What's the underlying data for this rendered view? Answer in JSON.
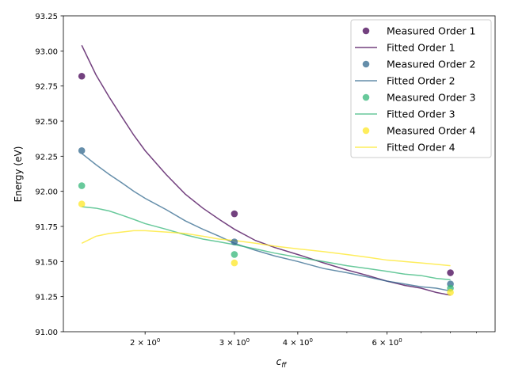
{
  "chart_data": {
    "type": "scatter",
    "xscale": "log",
    "xlabel": "c_ff",
    "xlabel_main": "c",
    "xlabel_sub": "ff",
    "ylabel": "Energy (eV)",
    "xlim": [
      1.38,
      9.8
    ],
    "ylim": [
      91.0,
      93.25
    ],
    "x_ticks_major": [
      {
        "value": 2,
        "base": "2 × 10",
        "exp": "0"
      },
      {
        "value": 3,
        "base": "3 × 10",
        "exp": "0"
      },
      {
        "value": 4,
        "base": "4 × 10",
        "exp": "0"
      },
      {
        "value": 6,
        "base": "6 × 10",
        "exp": "0"
      }
    ],
    "x_ticks_minor": [
      5,
      7,
      8,
      9
    ],
    "y_ticks": [
      {
        "value": 91.0,
        "label": "91.00"
      },
      {
        "value": 91.25,
        "label": "91.25"
      },
      {
        "value": 91.5,
        "label": "91.50"
      },
      {
        "value": 91.75,
        "label": "91.75"
      },
      {
        "value": 92.0,
        "label": "92.00"
      },
      {
        "value": 92.25,
        "label": "92.25"
      },
      {
        "value": 92.5,
        "label": "92.50"
      },
      {
        "value": 92.75,
        "label": "92.75"
      },
      {
        "value": 93.0,
        "label": "93.00"
      },
      {
        "value": 93.25,
        "label": "93.25"
      }
    ],
    "legend_position": "top-right",
    "grid": false,
    "series": [
      {
        "name": "Order 1",
        "measured_label": "Measured Order 1",
        "fitted_label": "Fitted Order 1",
        "color": "#440154",
        "measured": {
          "x": [
            1.5,
            3.0,
            8.0
          ],
          "y": [
            92.82,
            91.84,
            91.42
          ]
        },
        "fitted": {
          "x": [
            1.5,
            1.6,
            1.7,
            1.8,
            1.9,
            2.0,
            2.2,
            2.4,
            2.6,
            2.8,
            3.0,
            3.3,
            3.6,
            4.0,
            4.5,
            5.0,
            5.5,
            6.0,
            6.5,
            7.0,
            7.5,
            8.0
          ],
          "y": [
            93.04,
            92.83,
            92.67,
            92.53,
            92.4,
            92.29,
            92.12,
            91.98,
            91.88,
            91.8,
            91.73,
            91.65,
            91.6,
            91.55,
            91.49,
            91.44,
            91.4,
            91.36,
            91.33,
            91.31,
            91.28,
            91.26
          ]
        }
      },
      {
        "name": "Order 2",
        "measured_label": "Measured Order 2",
        "fitted_label": "Fitted Order 2",
        "color": "#31688e",
        "measured": {
          "x": [
            1.5,
            3.0,
            8.0
          ],
          "y": [
            92.29,
            91.64,
            91.34
          ]
        },
        "fitted": {
          "x": [
            1.5,
            1.6,
            1.7,
            1.8,
            1.9,
            2.0,
            2.2,
            2.4,
            2.6,
            2.8,
            3.0,
            3.3,
            3.6,
            4.0,
            4.5,
            5.0,
            5.5,
            6.0,
            6.5,
            7.0,
            7.5,
            8.0
          ],
          "y": [
            92.27,
            92.19,
            92.12,
            92.06,
            92.0,
            91.95,
            91.87,
            91.79,
            91.73,
            91.68,
            91.63,
            91.58,
            91.54,
            91.5,
            91.45,
            91.42,
            91.39,
            91.36,
            91.34,
            91.32,
            91.31,
            91.29
          ]
        }
      },
      {
        "name": "Order 3",
        "measured_label": "Measured Order 3",
        "fitted_label": "Fitted Order 3",
        "color": "#35b779",
        "measured": {
          "x": [
            1.5,
            3.0,
            8.0
          ],
          "y": [
            92.04,
            91.55,
            91.31
          ]
        },
        "fitted": {
          "x": [
            1.5,
            1.6,
            1.7,
            1.8,
            1.9,
            2.0,
            2.2,
            2.4,
            2.6,
            2.8,
            3.0,
            3.3,
            3.6,
            4.0,
            4.5,
            5.0,
            5.5,
            6.0,
            6.5,
            7.0,
            7.5,
            8.0
          ],
          "y": [
            91.89,
            91.88,
            91.86,
            91.83,
            91.8,
            91.77,
            91.73,
            91.69,
            91.66,
            91.64,
            91.62,
            91.59,
            91.56,
            91.53,
            91.5,
            91.47,
            91.45,
            91.43,
            91.41,
            91.4,
            91.38,
            91.37
          ]
        }
      },
      {
        "name": "Order 4",
        "measured_label": "Measured Order 4",
        "fitted_label": "Fitted Order 4",
        "color": "#fde725",
        "measured": {
          "x": [
            1.5,
            3.0,
            8.0
          ],
          "y": [
            91.91,
            91.49,
            91.28
          ]
        },
        "fitted": {
          "x": [
            1.5,
            1.6,
            1.7,
            1.8,
            1.9,
            2.0,
            2.2,
            2.4,
            2.6,
            2.8,
            3.0,
            3.3,
            3.6,
            4.0,
            4.5,
            5.0,
            5.5,
            6.0,
            6.5,
            7.0,
            7.5,
            8.0
          ],
          "y": [
            91.63,
            91.68,
            91.7,
            91.71,
            91.72,
            91.72,
            91.71,
            91.7,
            91.68,
            91.66,
            91.65,
            91.63,
            91.61,
            91.59,
            91.57,
            91.55,
            91.53,
            91.51,
            91.5,
            91.49,
            91.48,
            91.47
          ]
        }
      }
    ]
  }
}
